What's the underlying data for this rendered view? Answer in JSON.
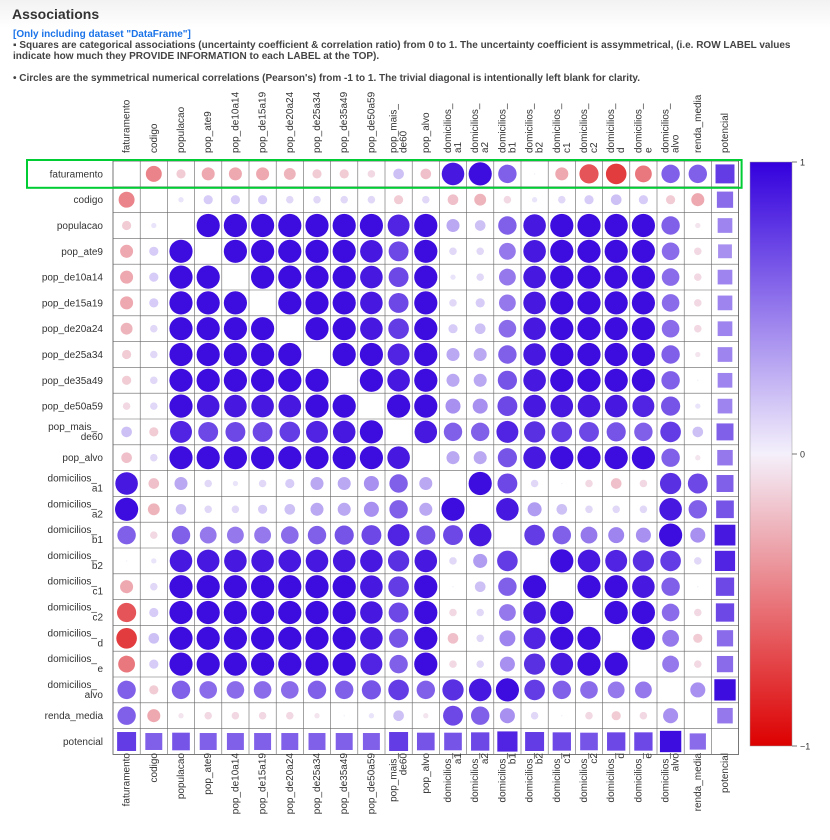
{
  "header": {
    "title": "Associations",
    "dataset_note": "[Only including dataset \"DataFrame\"]",
    "squares_note": "▪ Squares are categorical associations (uncertainty coefficient & correlation ratio) from 0 to 1. The uncertainty coefficient is assymmetrical, (i.e. ROW LABEL values indicate how much they PROVIDE INFORMATION to each LABEL at the TOP).",
    "circles_note": "• Circles are the symmetrical numerical correlations (Pearson's) from -1 to 1. The trivial diagonal is intentionally left blank for clarity."
  },
  "colors": {
    "positive": "#3300dd",
    "neutral": "#f4f0fb",
    "negative": "#dd0000",
    "highlight": "#00cc33"
  },
  "highlighted_row": "faturamento",
  "chart_data": {
    "type": "heatmap",
    "title": "",
    "labels": [
      "faturamento",
      "codigo",
      "populacao",
      "pop_ate9",
      "pop_de10a14",
      "pop_de15a19",
      "pop_de20a24",
      "pop_de25a34",
      "pop_de35a49",
      "pop_de50a59",
      "pop_mais_de60",
      "pop_alvo",
      "domicilios_a1",
      "domicilios_a2",
      "domicilios_b1",
      "domicilios_b2",
      "domicilios_c1",
      "domicilios_c2",
      "domicilios_d",
      "domicilios_e",
      "domicilios_alvo",
      "renda_media",
      "potencial"
    ],
    "legend": {
      "position": "right",
      "ticks": [
        "1",
        "0",
        "−1"
      ],
      "range": [
        -1,
        1
      ]
    },
    "potencial_row_values": [
      0.75,
      0.6,
      0.65,
      0.6,
      0.6,
      0.6,
      0.6,
      0.6,
      0.6,
      0.6,
      0.75,
      0.65,
      0.65,
      0.7,
      0.85,
      0.75,
      0.7,
      0.65,
      0.7,
      0.7,
      0.95,
      0.55
    ],
    "potencial_col_values": [
      0.75,
      0.55,
      0.45,
      0.4,
      0.45,
      0.45,
      0.45,
      0.45,
      0.45,
      0.45,
      0.6,
      0.5,
      0.6,
      0.65,
      0.9,
      0.85,
      0.7,
      0.7,
      0.55,
      0.55,
      0.95,
      0.5
    ],
    "correlations": [
      [
        null,
        -0.45,
        -0.15,
        -0.3,
        -0.3,
        -0.3,
        -0.25,
        -0.15,
        -0.15,
        -0.1,
        0.2,
        -0.2,
        0.9,
        0.95,
        0.6,
        0.0,
        -0.3,
        -0.65,
        -0.75,
        -0.5,
        0.6,
        0.6
      ],
      [
        -0.45,
        null,
        0.05,
        0.15,
        0.15,
        0.15,
        0.1,
        0.1,
        0.1,
        0.1,
        -0.15,
        0.1,
        -0.2,
        -0.25,
        -0.1,
        0.05,
        0.1,
        0.15,
        0.2,
        0.15,
        -0.15,
        -0.3
      ],
      [
        -0.15,
        0.05,
        null,
        0.95,
        0.95,
        0.95,
        0.95,
        0.95,
        0.95,
        0.95,
        0.85,
        0.95,
        0.3,
        0.2,
        0.6,
        0.9,
        0.95,
        0.95,
        0.95,
        0.95,
        0.6,
        -0.05
      ],
      [
        -0.3,
        0.15,
        0.95,
        null,
        0.95,
        0.95,
        0.95,
        0.95,
        0.95,
        0.9,
        0.7,
        0.95,
        0.1,
        0.1,
        0.5,
        0.9,
        0.95,
        0.95,
        0.95,
        0.95,
        0.55,
        -0.1
      ],
      [
        -0.3,
        0.15,
        0.95,
        0.95,
        null,
        0.95,
        0.95,
        0.95,
        0.95,
        0.9,
        0.7,
        0.95,
        0.05,
        0.1,
        0.5,
        0.9,
        0.95,
        0.95,
        0.95,
        0.95,
        0.55,
        -0.1
      ],
      [
        -0.3,
        0.15,
        0.95,
        0.95,
        0.95,
        null,
        0.95,
        0.95,
        0.95,
        0.9,
        0.7,
        0.95,
        0.1,
        0.15,
        0.5,
        0.9,
        0.95,
        0.95,
        0.95,
        0.95,
        0.55,
        -0.1
      ],
      [
        -0.25,
        0.1,
        0.95,
        0.95,
        0.95,
        0.95,
        null,
        0.95,
        0.95,
        0.9,
        0.75,
        0.95,
        0.15,
        0.2,
        0.55,
        0.9,
        0.95,
        0.95,
        0.95,
        0.95,
        0.55,
        -0.1
      ],
      [
        -0.15,
        0.1,
        0.95,
        0.95,
        0.95,
        0.95,
        0.95,
        null,
        0.95,
        0.95,
        0.85,
        0.95,
        0.3,
        0.3,
        0.6,
        0.9,
        0.95,
        0.95,
        0.95,
        0.95,
        0.6,
        -0.05
      ],
      [
        -0.15,
        0.1,
        0.95,
        0.95,
        0.95,
        0.95,
        0.95,
        0.95,
        null,
        0.95,
        0.9,
        0.95,
        0.3,
        0.3,
        0.65,
        0.9,
        0.95,
        0.95,
        0.95,
        0.95,
        0.6,
        0.0
      ],
      [
        -0.1,
        0.1,
        0.95,
        0.9,
        0.9,
        0.9,
        0.9,
        0.95,
        0.95,
        null,
        0.95,
        0.95,
        0.4,
        0.4,
        0.7,
        0.9,
        0.9,
        0.9,
        0.9,
        0.85,
        0.65,
        0.05
      ],
      [
        0.2,
        -0.15,
        0.85,
        0.7,
        0.7,
        0.7,
        0.75,
        0.85,
        0.9,
        0.95,
        null,
        0.9,
        0.6,
        0.6,
        0.85,
        0.8,
        0.75,
        0.7,
        0.65,
        0.6,
        0.75,
        0.2
      ],
      [
        -0.2,
        0.1,
        0.95,
        0.95,
        0.95,
        0.95,
        0.95,
        0.95,
        0.95,
        0.95,
        0.9,
        null,
        0.3,
        0.3,
        0.65,
        0.9,
        0.95,
        0.95,
        0.95,
        0.95,
        0.6,
        -0.05
      ],
      [
        0.9,
        -0.2,
        0.3,
        0.1,
        0.05,
        0.1,
        0.15,
        0.3,
        0.3,
        0.4,
        0.6,
        0.3,
        null,
        0.95,
        0.7,
        0.1,
        0.0,
        -0.1,
        -0.2,
        -0.1,
        0.8,
        0.7
      ],
      [
        0.95,
        -0.25,
        0.2,
        0.1,
        0.1,
        0.15,
        0.2,
        0.3,
        0.3,
        0.4,
        0.6,
        0.3,
        0.95,
        null,
        0.9,
        0.35,
        0.2,
        0.1,
        0.1,
        0.1,
        0.9,
        0.6
      ],
      [
        0.6,
        -0.1,
        0.6,
        0.5,
        0.5,
        0.5,
        0.55,
        0.6,
        0.65,
        0.7,
        0.85,
        0.65,
        0.7,
        0.9,
        null,
        0.75,
        0.6,
        0.5,
        0.45,
        0.4,
        0.95,
        0.4
      ],
      [
        0.0,
        0.05,
        0.9,
        0.9,
        0.9,
        0.9,
        0.9,
        0.9,
        0.9,
        0.9,
        0.8,
        0.9,
        0.1,
        0.35,
        0.75,
        null,
        0.95,
        0.9,
        0.85,
        0.8,
        0.75,
        0.1
      ],
      [
        -0.3,
        0.1,
        0.95,
        0.95,
        0.95,
        0.95,
        0.95,
        0.95,
        0.95,
        0.9,
        0.75,
        0.95,
        0.0,
        0.2,
        0.6,
        0.95,
        null,
        0.95,
        0.95,
        0.9,
        0.6,
        0.0
      ],
      [
        -0.65,
        0.15,
        0.95,
        0.95,
        0.95,
        0.95,
        0.95,
        0.95,
        0.95,
        0.9,
        0.7,
        0.95,
        -0.1,
        0.1,
        0.5,
        0.9,
        0.95,
        null,
        0.95,
        0.95,
        0.55,
        -0.1
      ],
      [
        -0.75,
        0.2,
        0.95,
        0.95,
        0.95,
        0.95,
        0.95,
        0.95,
        0.95,
        0.9,
        0.65,
        0.95,
        -0.2,
        0.1,
        0.45,
        0.85,
        0.95,
        0.95,
        null,
        0.95,
        0.5,
        -0.15
      ],
      [
        -0.5,
        0.15,
        0.95,
        0.95,
        0.95,
        0.95,
        0.95,
        0.95,
        0.95,
        0.85,
        0.6,
        0.95,
        -0.1,
        0.1,
        0.4,
        0.8,
        0.9,
        0.95,
        0.95,
        null,
        0.5,
        -0.1
      ],
      [
        0.6,
        -0.15,
        0.6,
        0.55,
        0.55,
        0.55,
        0.55,
        0.6,
        0.6,
        0.65,
        0.75,
        0.6,
        0.8,
        0.9,
        0.95,
        0.75,
        0.6,
        0.55,
        0.5,
        0.5,
        null,
        0.4
      ],
      [
        0.6,
        -0.3,
        -0.05,
        -0.1,
        -0.1,
        -0.1,
        -0.1,
        -0.05,
        0.0,
        0.05,
        0.2,
        -0.05,
        0.7,
        0.6,
        0.4,
        0.1,
        0.0,
        -0.1,
        -0.15,
        -0.1,
        0.4,
        null
      ]
    ]
  }
}
